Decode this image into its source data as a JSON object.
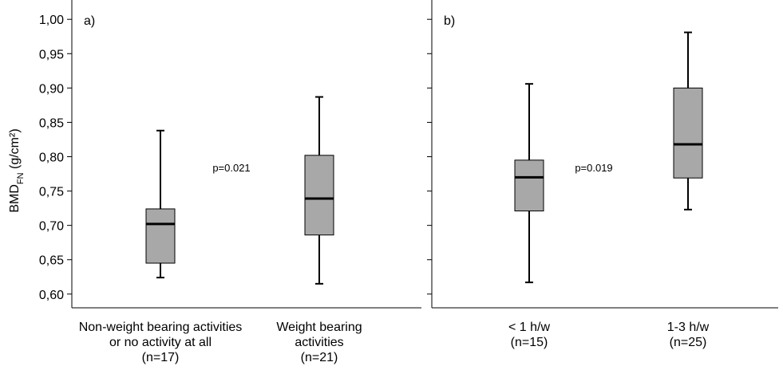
{
  "chart_data": {
    "type": "box",
    "ylabel": "BMD",
    "ylabel_sub": "FN",
    "ylabel_unit": " (g/cm²)",
    "ylim": [
      0.58,
      1.02
    ],
    "yticks": [
      0.6,
      0.65,
      0.7,
      0.75,
      0.8,
      0.85,
      0.9,
      0.95,
      1.0
    ],
    "ytick_labels": [
      "0,60",
      "0,65",
      "0,70",
      "0,75",
      "0,80",
      "0,85",
      "0,90",
      "0,95",
      "1,00"
    ],
    "box_color": "#a8a8a8",
    "panels": [
      {
        "label": "a)",
        "annotation": "p=0.021",
        "boxes": [
          {
            "category": [
              "Non-weight bearing activities",
              "or no activity at all",
              "(n=17)"
            ],
            "whisker_low": 0.624,
            "q1": 0.645,
            "median": 0.702,
            "q3": 0.724,
            "whisker_high": 0.838
          },
          {
            "category": [
              "Weight bearing",
              "activities",
              "(n=21)"
            ],
            "whisker_low": 0.615,
            "q1": 0.686,
            "median": 0.739,
            "q3": 0.802,
            "whisker_high": 0.887
          }
        ]
      },
      {
        "label": "b)",
        "annotation": "p=0.019",
        "boxes": [
          {
            "category": [
              "< 1 h/w",
              "(n=15)"
            ],
            "whisker_low": 0.617,
            "q1": 0.721,
            "median": 0.77,
            "q3": 0.795,
            "whisker_high": 0.906
          },
          {
            "category": [
              "1-3 h/w",
              "(n=25)"
            ],
            "whisker_low": 0.723,
            "q1": 0.769,
            "median": 0.818,
            "q3": 0.9,
            "whisker_high": 0.981
          }
        ]
      }
    ]
  }
}
